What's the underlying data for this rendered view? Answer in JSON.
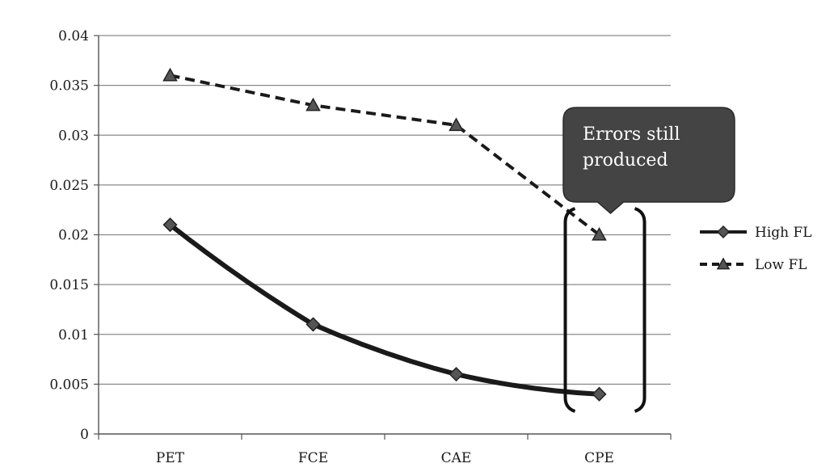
{
  "chart_data": {
    "type": "line",
    "title": "",
    "xlabel": "",
    "ylabel": "",
    "categories": [
      "PET",
      "FCE",
      "CAE",
      "CPE"
    ],
    "ylim": [
      0,
      0.04
    ],
    "yticks": [
      0,
      0.005,
      0.01,
      0.015,
      0.02,
      0.025,
      0.03,
      0.035,
      0.04
    ],
    "ytick_labels": [
      "0",
      "0.005",
      "0.01",
      "0.015",
      "0.02",
      "0.025",
      "0.03",
      "0.035",
      "0.04"
    ],
    "grid": true,
    "legend_position": "right",
    "series": [
      {
        "name": "High FL",
        "values": [
          0.021,
          0.011,
          0.006,
          0.004
        ],
        "style": "solid",
        "marker": "diamond",
        "color": "#1a1a1a"
      },
      {
        "name": "Low FL",
        "values": [
          0.036,
          0.033,
          0.031,
          0.02
        ],
        "style": "dashed",
        "marker": "triangle",
        "color": "#1a1a1a"
      }
    ],
    "annotation": {
      "text_lines": [
        "Errors still",
        "produced"
      ],
      "target_category": "CPE",
      "background": "#444444"
    }
  }
}
